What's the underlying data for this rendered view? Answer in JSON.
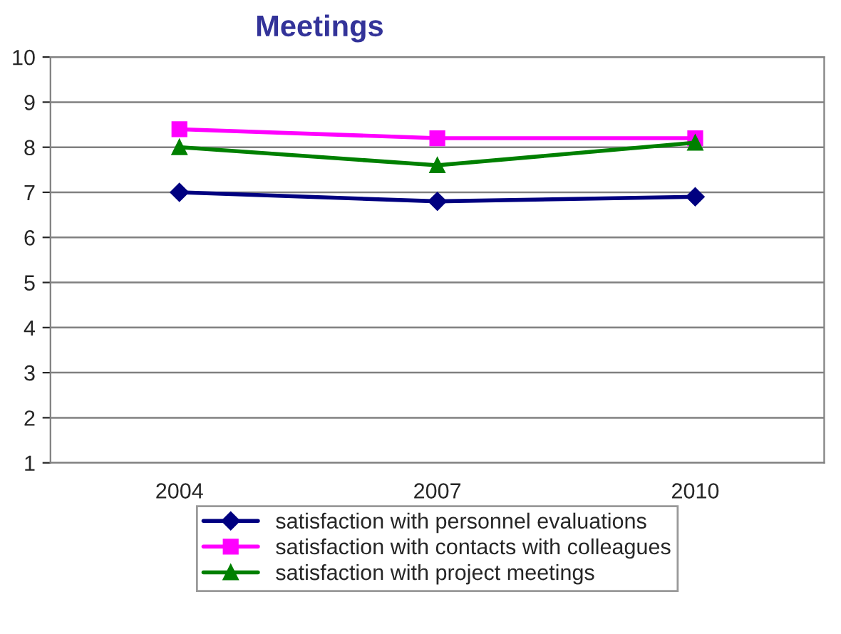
{
  "chart_data": {
    "type": "line",
    "title": "Meetings",
    "categories": [
      "2004",
      "2007",
      "2010"
    ],
    "series": [
      {
        "name": "satisfaction with personnel evaluations",
        "color": "#000080",
        "marker": "diamond",
        "values": [
          7.0,
          6.8,
          6.9
        ]
      },
      {
        "name": "satisfaction with contacts with colleagues",
        "color": "#ff00ff",
        "marker": "square",
        "values": [
          8.4,
          8.2,
          8.2
        ]
      },
      {
        "name": "satisfaction with project meetings",
        "color": "#008000",
        "marker": "triangle",
        "values": [
          8.0,
          7.6,
          8.1
        ]
      }
    ],
    "ylim": [
      1,
      10
    ],
    "yticks": [
      1,
      2,
      3,
      4,
      5,
      6,
      7,
      8,
      9,
      10
    ],
    "grid": "y",
    "legend": "bottom",
    "line_style": "solid"
  }
}
